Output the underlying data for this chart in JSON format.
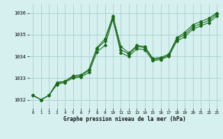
{
  "background_color": "#d6f0f0",
  "grid_color": "#a8cece",
  "line_color": "#1a6b1a",
  "xlabel": "Graphe pression niveau de la mer (hPa)",
  "xlim": [
    -0.5,
    23.5
  ],
  "ylim": [
    1031.6,
    1036.4
  ],
  "yticks": [
    1032,
    1033,
    1034,
    1035,
    1036
  ],
  "xticks": [
    0,
    1,
    2,
    3,
    4,
    5,
    6,
    7,
    8,
    9,
    10,
    11,
    12,
    13,
    14,
    15,
    16,
    17,
    18,
    19,
    20,
    21,
    22,
    23
  ],
  "series": [
    [
      1032.2,
      1032.0,
      1032.2,
      1032.8,
      1032.85,
      1033.1,
      1033.15,
      1033.4,
      1034.4,
      1034.8,
      1035.85,
      1034.45,
      1034.15,
      1034.5,
      1034.45,
      1033.9,
      1033.95,
      1034.1,
      1034.85,
      1035.1,
      1035.45,
      1035.6,
      1035.75,
      1036.0
    ],
    [
      1032.2,
      1032.0,
      1032.2,
      1032.75,
      1032.85,
      1033.05,
      1033.1,
      1033.35,
      1034.35,
      1034.7,
      1035.8,
      1034.3,
      1034.1,
      1034.45,
      1034.4,
      1033.85,
      1033.9,
      1034.05,
      1034.8,
      1035.0,
      1035.35,
      1035.5,
      1035.65,
      1035.95
    ],
    [
      1032.2,
      1032.0,
      1032.2,
      1032.7,
      1032.8,
      1033.0,
      1033.05,
      1033.25,
      1034.2,
      1034.5,
      1035.7,
      1034.15,
      1034.0,
      1034.35,
      1034.3,
      1033.8,
      1033.85,
      1034.0,
      1034.7,
      1034.9,
      1035.25,
      1035.4,
      1035.55,
      1035.85
    ]
  ],
  "marker": "D",
  "markersize": 2.0,
  "linewidth": 0.8,
  "tick_labelsize": 5,
  "xlabel_fontsize": 5.5
}
